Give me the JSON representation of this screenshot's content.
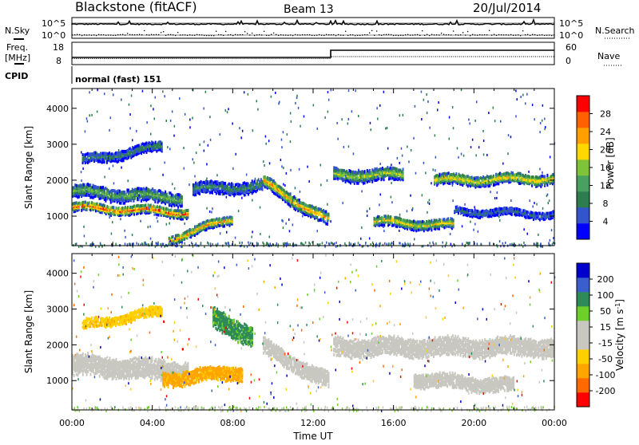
{
  "header": {
    "station": "Blackstone (fitACF)",
    "beam": "Beam 13",
    "date": "20/Jul/2014"
  },
  "noise_panel": {
    "left_label": "N.Sky",
    "right_label": "N.Search",
    "left_ticks": [
      "10^5",
      "10^0"
    ],
    "right_ticks": [
      "10^5",
      "10^0"
    ]
  },
  "freq_panel": {
    "left_label_1": "Freq.",
    "left_label_2": "[MHz]",
    "right_label": "Nave",
    "left_ticks": [
      "18",
      "8"
    ],
    "right_ticks": [
      "60",
      "0"
    ]
  },
  "cpid_panel": {
    "label": "CPID",
    "program": "normal (fast) 151"
  },
  "colors": {
    "power": [
      "#0000ff",
      "#3355cc",
      "#2e7d4f",
      "#4aa060",
      "#7fc33a",
      "#ffd800",
      "#ffa000",
      "#ff6000",
      "#ff0000"
    ],
    "velocity": [
      "#ff0000",
      "#ff6a00",
      "#ffa500",
      "#ffd000",
      "#c8c8c0",
      "#c8c8c0",
      "#6ecf2a",
      "#2e8b57",
      "#3a5fcd",
      "#0000cc"
    ]
  },
  "chart_data": [
    {
      "type": "heatmap",
      "title": "",
      "xlabel": "",
      "ylabel": "Slant Range [km]",
      "x_ticks": [
        "00:00",
        "04:00",
        "08:00",
        "12:00",
        "16:00",
        "20:00",
        "00:00"
      ],
      "xlim_hours": [
        0,
        24
      ],
      "ylim_km": [
        180,
        4550
      ],
      "y_ticks": [
        1000,
        2000,
        3000,
        4000
      ],
      "colorbar": {
        "label": "Power [dB]",
        "range": [
          0,
          32
        ],
        "ticks": [
          4,
          8,
          12,
          16,
          20,
          24,
          28
        ]
      },
      "echo_bands": [
        {
          "t0": 0.0,
          "t1": 5.8,
          "r0": 1300,
          "r1": 1150,
          "width": 220,
          "peak_db": 28
        },
        {
          "t0": 0.0,
          "t1": 5.5,
          "r0": 1750,
          "r1": 1550,
          "width": 320,
          "peak_db": 14
        },
        {
          "t0": 0.5,
          "t1": 4.5,
          "r0": 2600,
          "r1": 3000,
          "width": 250,
          "peak_db": 10
        },
        {
          "t0": 4.8,
          "t1": 8.0,
          "r0": 400,
          "r1": 1000,
          "width": 220,
          "peak_db": 24
        },
        {
          "t0": 6.0,
          "t1": 9.5,
          "r0": 1800,
          "r1": 1900,
          "width": 300,
          "peak_db": 10
        },
        {
          "t0": 9.5,
          "t1": 12.8,
          "r0": 2000,
          "r1": 900,
          "width": 300,
          "peak_db": 24
        },
        {
          "t0": 13.0,
          "t1": 16.5,
          "r0": 2200,
          "r1": 2200,
          "width": 300,
          "peak_db": 18
        },
        {
          "t0": 15.0,
          "t1": 19.0,
          "r0": 900,
          "r1": 800,
          "width": 250,
          "peak_db": 20
        },
        {
          "t0": 18.0,
          "t1": 24.0,
          "r0": 2050,
          "r1": 2100,
          "width": 260,
          "peak_db": 22
        },
        {
          "t0": 19.0,
          "t1": 24.0,
          "r0": 1200,
          "r1": 1100,
          "width": 180,
          "peak_db": 8
        }
      ]
    },
    {
      "type": "heatmap",
      "title": "",
      "xlabel": "Time UT",
      "ylabel": "Slant Range [km]",
      "x_ticks": [
        "00:00",
        "04:00",
        "08:00",
        "12:00",
        "16:00",
        "20:00",
        "00:00"
      ],
      "xlim_hours": [
        0,
        24
      ],
      "ylim_km": [
        180,
        4550
      ],
      "y_ticks": [
        1000,
        2000,
        3000,
        4000
      ],
      "colorbar": {
        "label": "Velocity [m s^-1]",
        "range": [
          -250,
          250
        ],
        "ticks": [
          200,
          100,
          50,
          15,
          -15,
          -50,
          -100,
          -200
        ]
      },
      "echo_bands": [
        {
          "t0": 0.0,
          "t1": 5.8,
          "r0": 1500,
          "r1": 1300,
          "width": 500,
          "velocity": 0
        },
        {
          "t0": 0.5,
          "t1": 4.5,
          "r0": 2600,
          "r1": 3000,
          "width": 250,
          "velocity": -40
        },
        {
          "t0": 4.5,
          "t1": 8.5,
          "r0": 1100,
          "r1": 1300,
          "width": 350,
          "velocity": -60
        },
        {
          "t0": 7.0,
          "t1": 9.0,
          "r0": 2800,
          "r1": 2300,
          "width": 500,
          "velocity": 60
        },
        {
          "t0": 9.5,
          "t1": 12.8,
          "r0": 2000,
          "r1": 1000,
          "width": 400,
          "velocity": 0
        },
        {
          "t0": 13.0,
          "t1": 24.0,
          "r0": 2000,
          "r1": 2000,
          "width": 450,
          "velocity": 0
        },
        {
          "t0": 17.0,
          "t1": 22.0,
          "r0": 1100,
          "r1": 900,
          "width": 350,
          "velocity": 0
        }
      ]
    }
  ]
}
